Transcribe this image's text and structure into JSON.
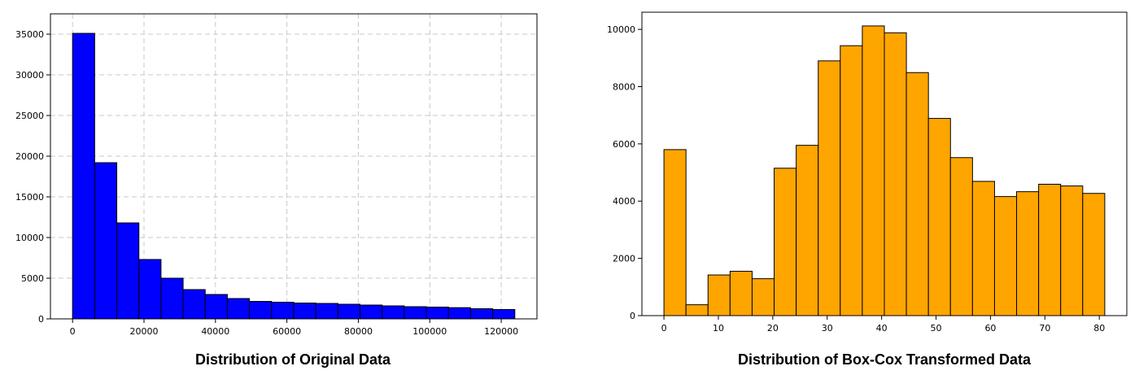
{
  "chart_data": [
    {
      "type": "bar",
      "title": "Distribution of Original Data",
      "xlabel": "",
      "ylabel": "",
      "bin_edges": [
        0,
        6190,
        12380,
        18570,
        24760,
        30950,
        37140,
        43330,
        49520,
        55710,
        61900,
        68090,
        74280,
        80470,
        86660,
        92850,
        99040,
        105230,
        111420,
        117610,
        123800
      ],
      "values": [
        35100,
        19200,
        11800,
        7300,
        5000,
        3600,
        3000,
        2500,
        2150,
        2050,
        1950,
        1900,
        1800,
        1700,
        1600,
        1500,
        1450,
        1380,
        1250,
        1150
      ],
      "xlim": [
        -6190,
        130000
      ],
      "ylim": [
        0,
        37500
      ],
      "xticks": [
        0,
        20000,
        40000,
        60000,
        80000,
        100000,
        120000
      ],
      "xtick_labels": [
        "0",
        "20000",
        "40000",
        "60000",
        "80000",
        "100000",
        "120000"
      ],
      "yticks": [
        0,
        5000,
        10000,
        15000,
        20000,
        25000,
        30000,
        35000
      ],
      "ytick_labels": [
        "0",
        "5000",
        "10000",
        "15000",
        "20000",
        "25000",
        "30000",
        "35000"
      ],
      "grid": true,
      "color": "#0000ff",
      "edgecolor": "#000000"
    },
    {
      "type": "bar",
      "title": "Distribution of Box-Cox Transformed Data",
      "xlabel": "",
      "ylabel": "",
      "bin_edges": [
        0,
        4.05,
        8.1,
        12.15,
        16.2,
        20.25,
        24.3,
        28.35,
        32.4,
        36.45,
        40.5,
        44.55,
        48.6,
        52.65,
        56.7,
        60.75,
        64.8,
        68.85,
        72.9,
        76.95,
        81
      ],
      "values": [
        5800,
        380,
        1420,
        1550,
        1290,
        5150,
        5950,
        8900,
        9430,
        10120,
        9880,
        8490,
        6890,
        5520,
        4690,
        4160,
        4330,
        4590,
        4530,
        4270
      ],
      "xlim": [
        -4.05,
        85.05
      ],
      "ylim": [
        0,
        10600
      ],
      "xticks": [
        0,
        10,
        20,
        30,
        40,
        50,
        60,
        70,
        80
      ],
      "xtick_labels": [
        "0",
        "10",
        "20",
        "30",
        "40",
        "50",
        "60",
        "70",
        "80"
      ],
      "yticks": [
        0,
        2000,
        4000,
        6000,
        8000,
        10000
      ],
      "ytick_labels": [
        "0",
        "2000",
        "4000",
        "6000",
        "8000",
        "10000"
      ],
      "grid": false,
      "color": "#ffa500",
      "edgecolor": "#000000"
    }
  ]
}
